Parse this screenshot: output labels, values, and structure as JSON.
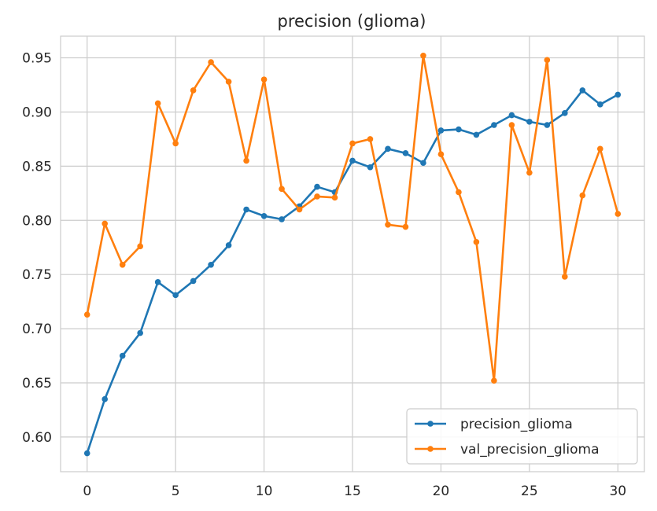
{
  "chart_data": {
    "type": "line",
    "title": "precision (glioma)",
    "xlabel": "",
    "ylabel": "",
    "xlim": [
      -1.5,
      31.5
    ],
    "ylim": [
      0.568,
      0.97
    ],
    "xticks": [
      0,
      5,
      10,
      15,
      20,
      25,
      30
    ],
    "yticks": [
      0.6,
      0.65,
      0.7,
      0.75,
      0.8,
      0.85,
      0.9,
      0.95
    ],
    "ytick_labels": [
      "0.60",
      "0.65",
      "0.70",
      "0.75",
      "0.80",
      "0.85",
      "0.90",
      "0.95"
    ],
    "grid": true,
    "legend_position": "lower-right",
    "x": [
      0,
      1,
      2,
      3,
      4,
      5,
      6,
      7,
      8,
      9,
      10,
      11,
      12,
      13,
      14,
      15,
      16,
      17,
      18,
      19,
      20,
      21,
      22,
      23,
      24,
      25,
      26,
      27,
      28,
      29,
      30
    ],
    "series": [
      {
        "name": "precision_glioma",
        "color": "#1f77b4",
        "values": [
          0.585,
          0.635,
          0.675,
          0.696,
          0.743,
          0.731,
          0.744,
          0.759,
          0.777,
          0.81,
          0.804,
          0.801,
          0.813,
          0.831,
          0.826,
          0.855,
          0.849,
          0.866,
          0.862,
          0.853,
          0.883,
          0.884,
          0.879,
          0.888,
          0.897,
          0.891,
          0.888,
          0.899,
          0.92,
          0.907,
          0.916
        ]
      },
      {
        "name": "val_precision_glioma",
        "color": "#ff7f0e",
        "values": [
          0.713,
          0.797,
          0.759,
          0.776,
          0.908,
          0.871,
          0.92,
          0.946,
          0.928,
          0.855,
          0.93,
          0.829,
          0.81,
          0.822,
          0.821,
          0.871,
          0.875,
          0.796,
          0.794,
          0.952,
          0.861,
          0.826,
          0.78,
          0.652,
          0.888,
          0.844,
          0.948,
          0.748,
          0.823,
          0.866,
          0.806
        ]
      }
    ]
  }
}
